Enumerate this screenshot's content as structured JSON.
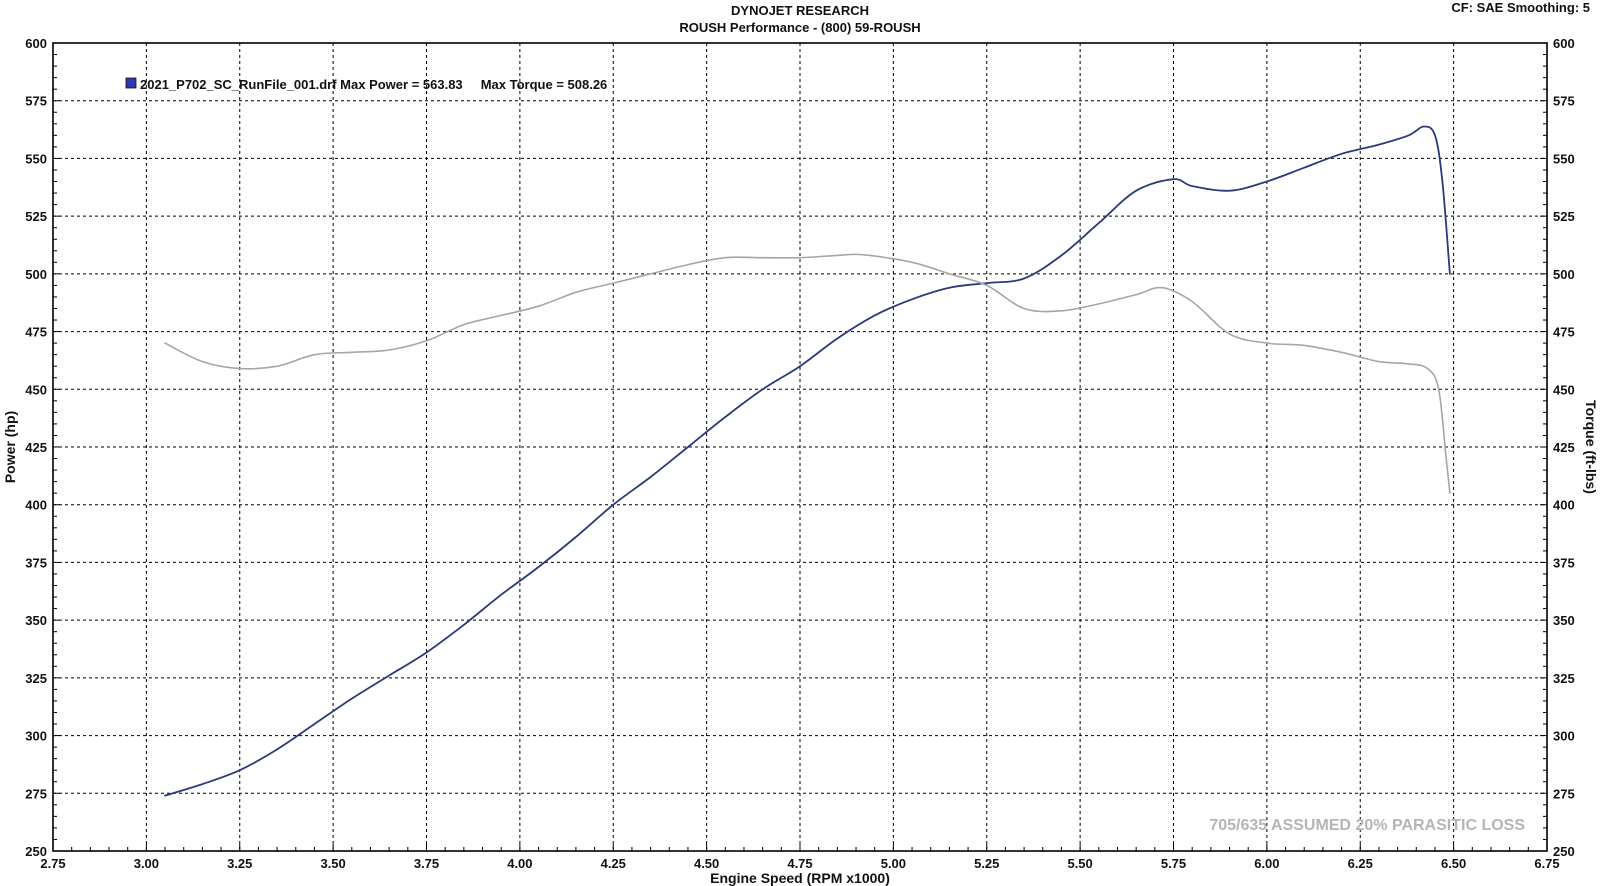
{
  "header": {
    "title": "DYNOJET RESEARCH",
    "subtitle": "ROUSH Performance - (800) 59-ROUSH",
    "cf_info": "CF: SAE  Smoothing: 5"
  },
  "colors": {
    "power_line": "#2b3a7a",
    "torque_line": "#a6a6a6",
    "grid": "#000000",
    "legend_swatch": "#2b3ab0"
  },
  "chart_data": {
    "type": "line",
    "xlabel": "Engine Speed (RPM x1000)",
    "ylabel_left": "Power (hp)",
    "ylabel_right": "Torque (ft-lbs)",
    "xlim": [
      2.75,
      6.75
    ],
    "ylim": [
      250,
      600
    ],
    "y2lim": [
      250,
      600
    ],
    "x_ticks": [
      "2.75",
      "3.00",
      "3.25",
      "3.50",
      "3.75",
      "4.00",
      "4.25",
      "4.50",
      "4.75",
      "5.00",
      "5.25",
      "5.50",
      "5.75",
      "6.00",
      "6.25",
      "6.50",
      "6.75"
    ],
    "y_ticks": [
      "250",
      "275",
      "300",
      "325",
      "350",
      "375",
      "400",
      "425",
      "450",
      "475",
      "500",
      "525",
      "550",
      "575",
      "600"
    ],
    "grid": true,
    "legend": {
      "position": "top-left",
      "text": "2021_P702_SC_RunFile_001.drf Max Power = 563.83     Max Torque = 508.26"
    },
    "annotation": "705/635 ASSUMED 20% PARASITIC LOSS",
    "series": [
      {
        "key": "power",
        "axis": "left",
        "x": [
          3.05,
          3.15,
          3.25,
          3.35,
          3.45,
          3.55,
          3.65,
          3.75,
          3.85,
          3.95,
          4.05,
          4.15,
          4.25,
          4.35,
          4.45,
          4.55,
          4.65,
          4.75,
          4.85,
          4.95,
          5.05,
          5.15,
          5.25,
          5.35,
          5.45,
          5.55,
          5.65,
          5.75,
          5.8,
          5.9,
          6.0,
          6.1,
          6.2,
          6.3,
          6.38,
          6.42,
          6.45,
          6.47,
          6.49
        ],
        "values": [
          274,
          279,
          285,
          294,
          305,
          316,
          326,
          336,
          348,
          361,
          373,
          386,
          400,
          412,
          425,
          438,
          450,
          460,
          472,
          482,
          489,
          494,
          496,
          498,
          508,
          522,
          536,
          541,
          538,
          536,
          540,
          546,
          552,
          556,
          560,
          563.83,
          560,
          540,
          500
        ]
      },
      {
        "key": "torque",
        "axis": "right",
        "x": [
          3.05,
          3.15,
          3.25,
          3.35,
          3.45,
          3.55,
          3.65,
          3.75,
          3.85,
          3.95,
          4.05,
          4.15,
          4.25,
          4.35,
          4.45,
          4.55,
          4.65,
          4.75,
          4.85,
          4.92,
          5.05,
          5.15,
          5.25,
          5.35,
          5.45,
          5.55,
          5.65,
          5.72,
          5.8,
          5.9,
          6.0,
          6.1,
          6.2,
          6.3,
          6.38,
          6.43,
          6.46,
          6.48,
          6.49
        ],
        "values": [
          470,
          462,
          459,
          460,
          465,
          466,
          467,
          471,
          478,
          482,
          486,
          492,
          496,
          500,
          504,
          507,
          507,
          507,
          508,
          508.26,
          505,
          500,
          495,
          485,
          484,
          487,
          491,
          494,
          488,
          474,
          470,
          469,
          466,
          462,
          461,
          459,
          450,
          420,
          405
        ]
      }
    ]
  }
}
